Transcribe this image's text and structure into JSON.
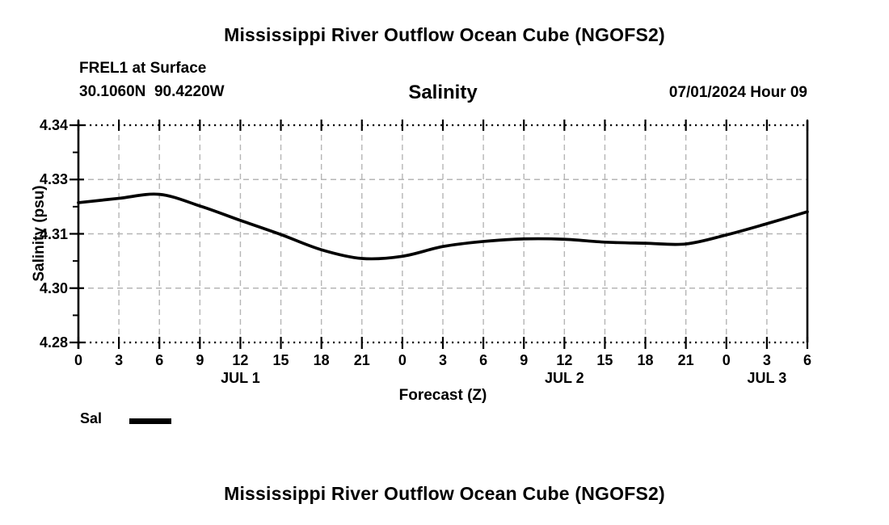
{
  "header": {
    "title": "Mississippi River Outflow Ocean Cube (NGOFS2)",
    "station_line": "FREL1 at Surface",
    "coords_line": "30.1060N  90.4220W",
    "variable_title": "Salinity",
    "datetime_label": "07/01/2024 Hour 09"
  },
  "footer": {
    "title": "Mississippi River Outflow Ocean Cube (NGOFS2)"
  },
  "legend": {
    "label": "Sal",
    "swatch_color": "#000000"
  },
  "colors": {
    "background": "#ffffff",
    "text": "#000000",
    "axis": "#000000",
    "grid": "#b5b5b5",
    "line": "#000000"
  },
  "chart_data": {
    "type": "line",
    "title": "Salinity",
    "xlabel": "Forecast (Z)",
    "ylabel": "Salinity (psu)",
    "xlim": [
      0,
      54
    ],
    "ylim": [
      4.28,
      4.34
    ],
    "grid": true,
    "legend_position": "bottom-left",
    "x_ticks": {
      "hours": [
        0,
        3,
        6,
        9,
        12,
        15,
        18,
        21,
        24,
        27,
        30,
        33,
        36,
        39,
        42,
        45,
        48,
        51,
        54
      ],
      "labels": [
        "0",
        "3",
        "6",
        "9",
        "12",
        "15",
        "18",
        "21",
        "0",
        "3",
        "6",
        "9",
        "12",
        "15",
        "18",
        "21",
        "0",
        "3",
        "6"
      ]
    },
    "day_labels": [
      {
        "label": "JUL 1",
        "hour": 12
      },
      {
        "label": "JUL 2",
        "hour": 36
      },
      {
        "label": "JUL 3",
        "hour": 51
      }
    ],
    "y_ticks": {
      "values": [
        4.34,
        4.325,
        4.31,
        4.295,
        4.28
      ],
      "labels": [
        "4.34",
        "4.33",
        "4.31",
        "4.30",
        "4.28"
      ],
      "minor": [
        4.3325,
        4.3175,
        4.3025,
        4.2875
      ]
    },
    "series": [
      {
        "name": "Sal",
        "color": "#000000",
        "hours": [
          0,
          3,
          6,
          9,
          12,
          15,
          18,
          21,
          24,
          27,
          30,
          33,
          36,
          39,
          42,
          45,
          48,
          51,
          54
        ],
        "values": [
          4.3186,
          4.3198,
          4.3209,
          4.3177,
          4.3137,
          4.3098,
          4.3056,
          4.3032,
          4.3038,
          4.3065,
          4.3079,
          4.3086,
          4.3085,
          4.3077,
          4.3074,
          4.3072,
          4.3097,
          4.3128,
          4.3161
        ]
      }
    ]
  }
}
